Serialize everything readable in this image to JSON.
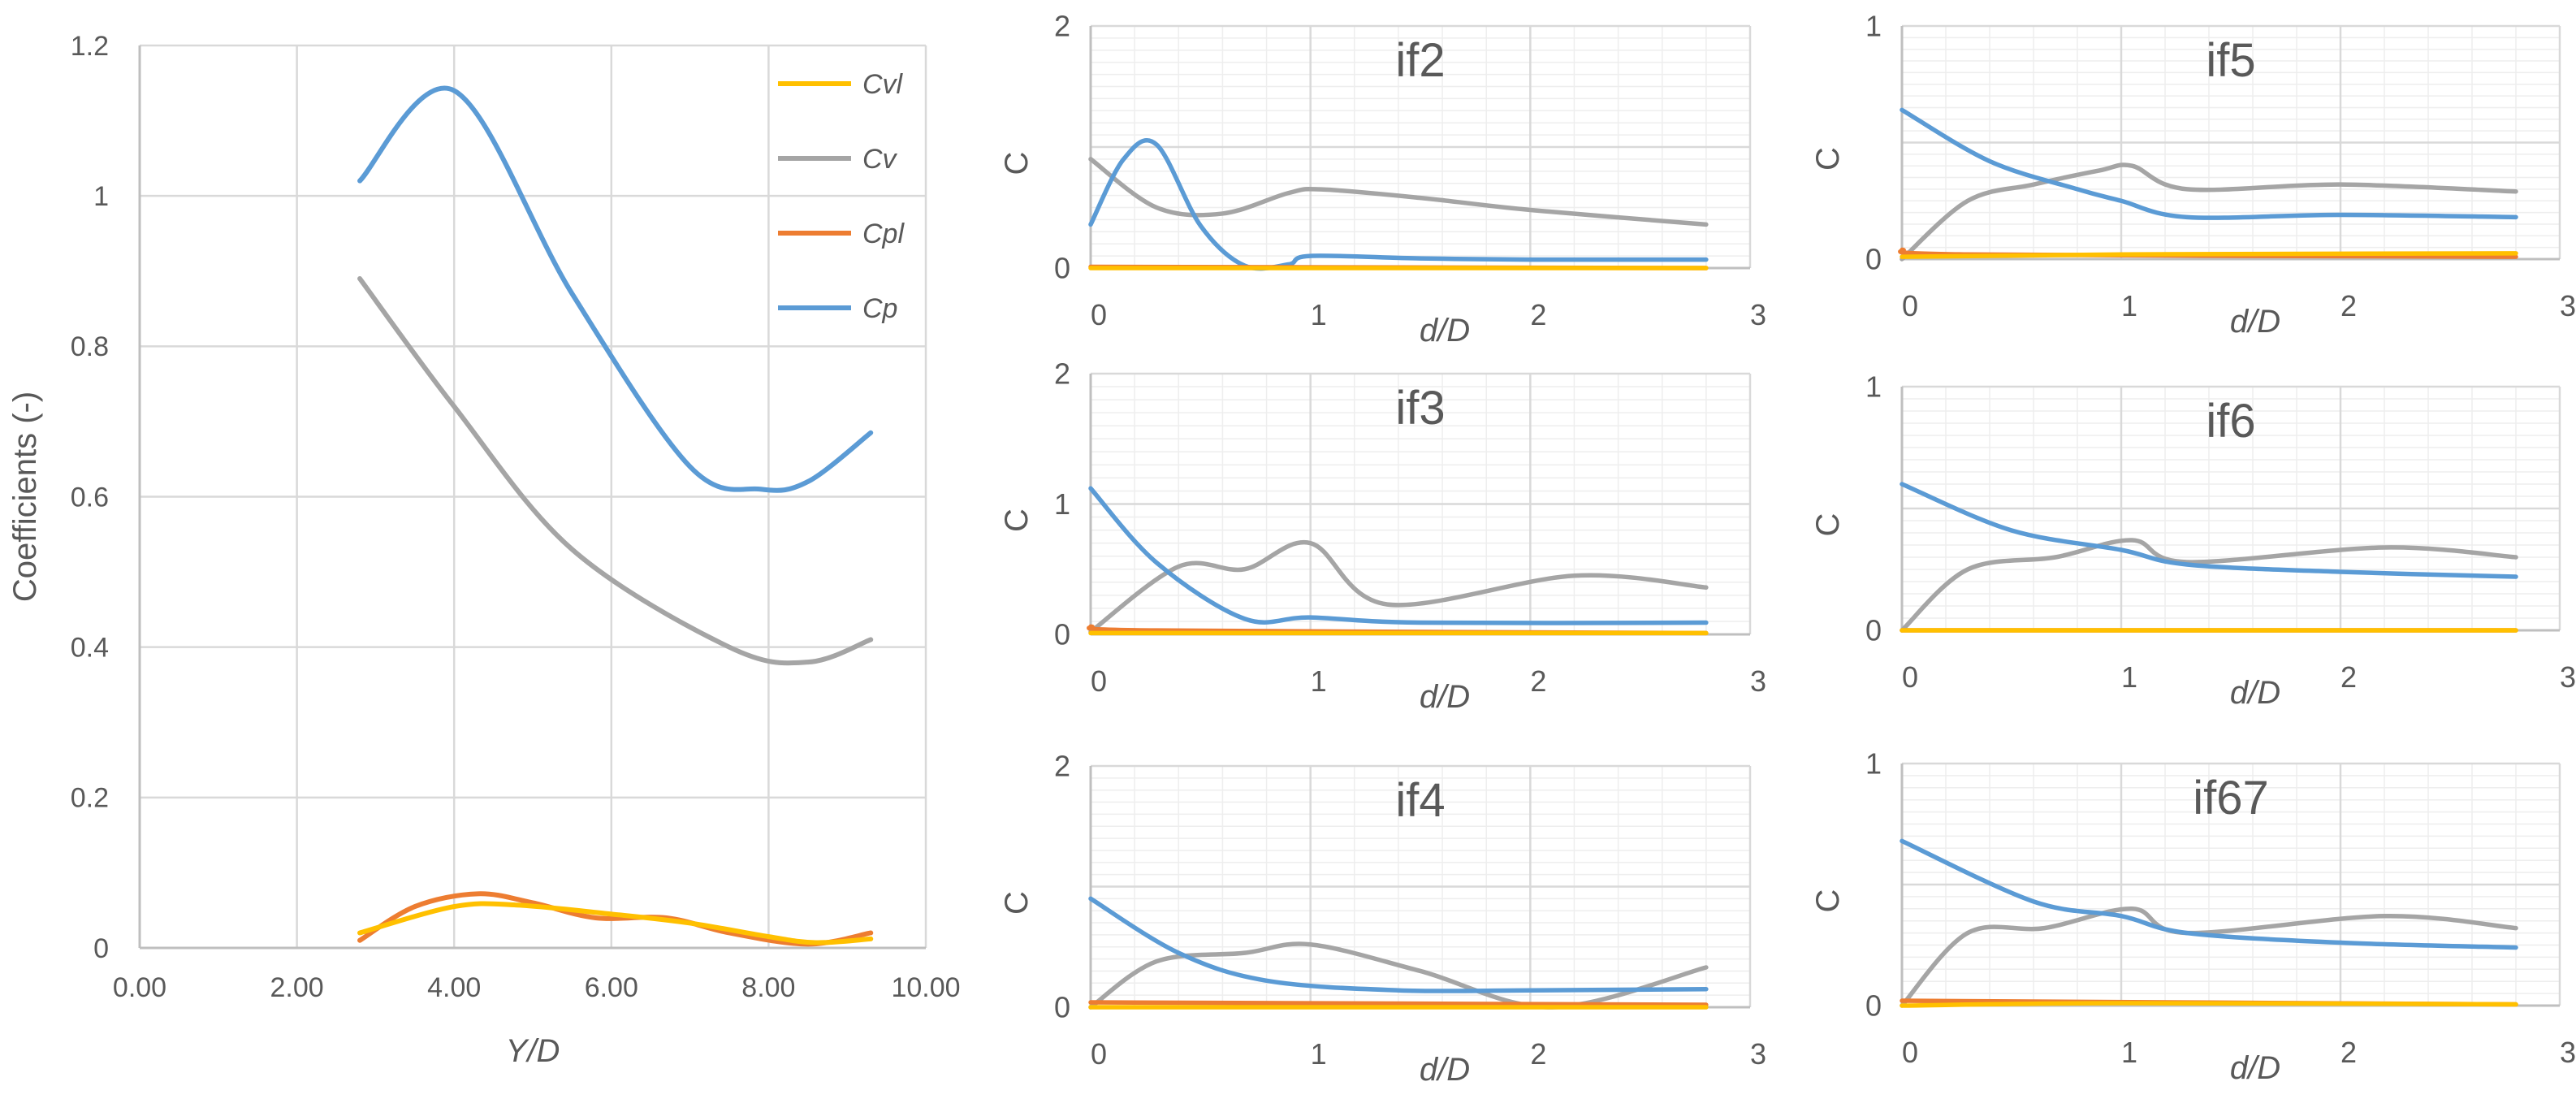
{
  "colors": {
    "Cvl": "#FFC000",
    "Cv": "#A5A5A5",
    "Cpl": "#ED7D31",
    "Cp": "#5B9BD5",
    "grid": "#D9D9D9",
    "axis": "#BFBFBF",
    "text": "#595959"
  },
  "chart_data": [
    {
      "id": "main",
      "type": "line",
      "title": "",
      "xlabel": "Y/D",
      "ylabel": "Coefficients (-)",
      "xlim": [
        0,
        10
      ],
      "ylim": [
        0,
        1.2
      ],
      "xticks": [
        0,
        2,
        4,
        6,
        8,
        10
      ],
      "xtick_labels": [
        "0.00",
        "2.00",
        "4.00",
        "6.00",
        "8.00",
        "10.00"
      ],
      "yticks": [
        0,
        0.2,
        0.4,
        0.6,
        0.8,
        1,
        1.2
      ],
      "ytick_labels": [
        "0",
        "0.2",
        "0.4",
        "0.6",
        "0.8",
        "1",
        "1.2"
      ],
      "grid": "major",
      "legend_position": "top-right",
      "legend": [
        "Cvl",
        "Cv",
        "Cpl",
        "Cp"
      ],
      "series": [
        {
          "name": "Cvl",
          "x": [
            2.8,
            4.0,
            4.8,
            6.0,
            7.0,
            8.0,
            8.6,
            9.3
          ],
          "y": [
            0.02,
            0.055,
            0.057,
            0.045,
            0.033,
            0.015,
            0.007,
            0.012
          ]
        },
        {
          "name": "Cv",
          "x": [
            2.8,
            4.0,
            5.5,
            7.5,
            8.5,
            9.3
          ],
          "y": [
            0.89,
            0.72,
            0.53,
            0.4,
            0.38,
            0.41
          ]
        },
        {
          "name": "Cpl",
          "x": [
            2.8,
            3.5,
            4.3,
            5.0,
            5.8,
            6.7,
            7.5,
            8.5,
            9.3
          ],
          "y": [
            0.01,
            0.055,
            0.072,
            0.06,
            0.04,
            0.04,
            0.02,
            0.005,
            0.02
          ]
        },
        {
          "name": "Cp",
          "x": [
            2.8,
            4.0,
            5.5,
            7.0,
            7.9,
            8.5,
            9.3
          ],
          "y": [
            1.02,
            1.14,
            0.87,
            0.64,
            0.61,
            0.62,
            0.685
          ]
        }
      ]
    },
    {
      "id": "if2",
      "type": "line",
      "title": "if2",
      "xlabel": "d/D",
      "ylabel": "C",
      "xlim": [
        0,
        3
      ],
      "ylim": [
        0,
        2
      ],
      "xticks": [
        0,
        1,
        2,
        3
      ],
      "xtick_labels": [
        "0",
        "1",
        "2",
        "3"
      ],
      "yticks": [
        0,
        2
      ],
      "ytick_labels": [
        "0",
        "2"
      ],
      "major_ygrid": [
        1,
        2
      ],
      "grid": "major+minor",
      "series": [
        {
          "name": "Cvl",
          "x": [
            0,
            1.4,
            2.8
          ],
          "y": [
            0.0,
            0.0,
            0.0
          ]
        },
        {
          "name": "Cv",
          "x": [
            0,
            0.3,
            0.6,
            0.9,
            1.05,
            1.5,
            2.0,
            2.8
          ],
          "y": [
            0.9,
            0.5,
            0.45,
            0.62,
            0.65,
            0.58,
            0.48,
            0.36
          ]
        },
        {
          "name": "Cpl",
          "x": [
            0,
            2.8
          ],
          "y": [
            0.01,
            0.0
          ]
        },
        {
          "name": "Cp",
          "x": [
            0,
            0.15,
            0.3,
            0.5,
            0.7,
            0.9,
            1.0,
            1.5,
            2.0,
            2.8
          ],
          "y": [
            0.36,
            0.9,
            1.02,
            0.35,
            0.02,
            0.03,
            0.1,
            0.08,
            0.07,
            0.07
          ]
        }
      ]
    },
    {
      "id": "if5",
      "type": "line",
      "title": "if5",
      "xlabel": "d/D",
      "ylabel": "C",
      "xlim": [
        0,
        3
      ],
      "ylim": [
        0,
        1
      ],
      "xticks": [
        0,
        1,
        2,
        3
      ],
      "xtick_labels": [
        "0",
        "1",
        "2",
        "3"
      ],
      "yticks": [
        0,
        1
      ],
      "ytick_labels": [
        "0",
        "1"
      ],
      "major_ygrid": [
        0.5,
        1
      ],
      "grid": "major+minor",
      "series": [
        {
          "name": "Cvl",
          "x": [
            0,
            1.0,
            2.8
          ],
          "y": [
            0.01,
            0.02,
            0.025
          ]
        },
        {
          "name": "Cv",
          "x": [
            0,
            0.3,
            0.6,
            0.9,
            1.05,
            1.3,
            2.0,
            2.8
          ],
          "y": [
            0.0,
            0.25,
            0.32,
            0.38,
            0.4,
            0.3,
            0.32,
            0.29
          ]
        },
        {
          "name": "Cpl",
          "x": [
            0,
            0.3,
            2.8
          ],
          "y": [
            0.04,
            0.02,
            0.01
          ]
        },
        {
          "name": "Cp",
          "x": [
            0,
            0.4,
            0.8,
            1.0,
            1.3,
            2.0,
            2.8
          ],
          "y": [
            0.64,
            0.42,
            0.3,
            0.25,
            0.18,
            0.19,
            0.18
          ]
        }
      ]
    },
    {
      "id": "if3",
      "type": "line",
      "title": "if3",
      "xlabel": "d/D",
      "ylabel": "C",
      "xlim": [
        0,
        3
      ],
      "ylim": [
        0,
        2
      ],
      "xticks": [
        0,
        1,
        2,
        3
      ],
      "xtick_labels": [
        "0",
        "1",
        "2",
        "3"
      ],
      "yticks": [
        0,
        1,
        2
      ],
      "ytick_labels": [
        "0",
        "1",
        "2"
      ],
      "major_ygrid": [
        1,
        2
      ],
      "grid": "major+minor",
      "series": [
        {
          "name": "Cvl",
          "x": [
            0,
            1.4,
            2.8
          ],
          "y": [
            0.01,
            0.01,
            0.01
          ]
        },
        {
          "name": "Cv",
          "x": [
            0,
            0.4,
            0.7,
            1.0,
            1.35,
            2.2,
            2.8
          ],
          "y": [
            0.02,
            0.52,
            0.5,
            0.7,
            0.23,
            0.45,
            0.36
          ]
        },
        {
          "name": "Cpl",
          "x": [
            0,
            0.3,
            2.8
          ],
          "y": [
            0.06,
            0.03,
            0.01
          ]
        },
        {
          "name": "Cp",
          "x": [
            0,
            0.3,
            0.7,
            1.0,
            1.5,
            2.8
          ],
          "y": [
            1.12,
            0.55,
            0.12,
            0.13,
            0.09,
            0.09
          ]
        }
      ]
    },
    {
      "id": "if6",
      "type": "line",
      "title": "if6",
      "xlabel": "d/D",
      "ylabel": "C",
      "xlim": [
        0,
        3
      ],
      "ylim": [
        0,
        1
      ],
      "xticks": [
        0,
        1,
        2,
        3
      ],
      "xtick_labels": [
        "0",
        "1",
        "2",
        "3"
      ],
      "yticks": [
        0,
        1
      ],
      "ytick_labels": [
        "0",
        "1"
      ],
      "major_ygrid": [
        0.5,
        1
      ],
      "grid": "major+minor",
      "series": [
        {
          "name": "Cvl",
          "x": [
            0,
            1.4,
            2.8
          ],
          "y": [
            0.0,
            0.0,
            0.0
          ]
        },
        {
          "name": "Cv",
          "x": [
            0,
            0.3,
            0.7,
            1.05,
            1.3,
            2.2,
            2.8
          ],
          "y": [
            0.0,
            0.25,
            0.3,
            0.37,
            0.28,
            0.34,
            0.3
          ]
        },
        {
          "name": "Cpl",
          "x": [
            0,
            2.8
          ],
          "y": [
            0.0,
            0.0
          ]
        },
        {
          "name": "Cp",
          "x": [
            0,
            0.5,
            1.0,
            1.3,
            2.0,
            2.8
          ],
          "y": [
            0.6,
            0.41,
            0.33,
            0.27,
            0.24,
            0.22
          ]
        }
      ]
    },
    {
      "id": "if4",
      "type": "line",
      "title": "if4",
      "xlabel": "d/D",
      "ylabel": "C",
      "xlim": [
        0,
        3
      ],
      "ylim": [
        0,
        2
      ],
      "xticks": [
        0,
        1,
        2,
        3
      ],
      "xtick_labels": [
        "0",
        "1",
        "2",
        "3"
      ],
      "yticks": [
        0,
        2
      ],
      "ytick_labels": [
        "0",
        "2"
      ],
      "major_ygrid": [
        1,
        2
      ],
      "grid": "major+minor",
      "series": [
        {
          "name": "Cvl",
          "x": [
            0,
            1.4,
            2.8
          ],
          "y": [
            0.0,
            0.0,
            0.0
          ]
        },
        {
          "name": "Cv",
          "x": [
            0,
            0.3,
            0.7,
            1.0,
            1.5,
            2.1,
            2.8
          ],
          "y": [
            0.0,
            0.38,
            0.45,
            0.52,
            0.3,
            0.0,
            0.33
          ]
        },
        {
          "name": "Cpl",
          "x": [
            0,
            1.4,
            2.8
          ],
          "y": [
            0.04,
            0.03,
            0.02
          ]
        },
        {
          "name": "Cp",
          "x": [
            0,
            0.4,
            0.8,
            1.4,
            2.0,
            2.8
          ],
          "y": [
            0.9,
            0.45,
            0.22,
            0.14,
            0.14,
            0.15
          ]
        }
      ]
    },
    {
      "id": "if67",
      "type": "line",
      "title": "if67",
      "xlabel": "d/D",
      "ylabel": "C",
      "xlim": [
        0,
        3
      ],
      "ylim": [
        0,
        1
      ],
      "xticks": [
        0,
        1,
        2,
        3
      ],
      "xtick_labels": [
        "0",
        "1",
        "2",
        "3"
      ],
      "yticks": [
        0,
        1
      ],
      "ytick_labels": [
        "0",
        "1"
      ],
      "major_ygrid": [
        0.5,
        1
      ],
      "grid": "major+minor",
      "series": [
        {
          "name": "Cvl",
          "x": [
            0,
            1.0,
            2.8
          ],
          "y": [
            0.0,
            0.01,
            0.005
          ]
        },
        {
          "name": "Cv",
          "x": [
            0,
            0.3,
            0.65,
            1.05,
            1.3,
            2.2,
            2.8
          ],
          "y": [
            0.0,
            0.3,
            0.32,
            0.4,
            0.3,
            0.37,
            0.32
          ]
        },
        {
          "name": "Cpl",
          "x": [
            0,
            2.8
          ],
          "y": [
            0.02,
            0.005
          ]
        },
        {
          "name": "Cp",
          "x": [
            0,
            0.6,
            1.0,
            1.3,
            2.0,
            2.8
          ],
          "y": [
            0.68,
            0.43,
            0.37,
            0.3,
            0.26,
            0.24
          ]
        }
      ]
    }
  ]
}
